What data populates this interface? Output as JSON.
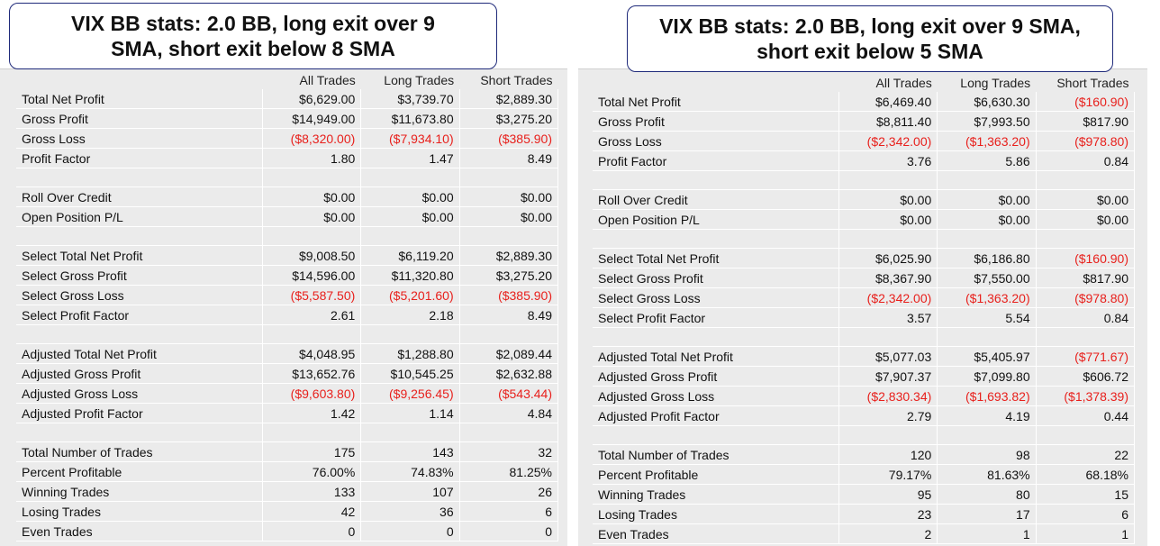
{
  "panels": [
    {
      "title_line1": "VIX BB stats: 2.0 BB, long exit over 9",
      "title_line2": "SMA, short exit below 8 SMA",
      "headers": [
        "All Trades",
        "Long Trades",
        "Short Trades"
      ],
      "rows": [
        {
          "label": "Total Net Profit",
          "values": [
            "$6,629.00",
            "$3,739.70",
            "$2,889.30"
          ],
          "neg": [
            false,
            false,
            false
          ]
        },
        {
          "label": "Gross Profit",
          "values": [
            "$14,949.00",
            "$11,673.80",
            "$3,275.20"
          ],
          "neg": [
            false,
            false,
            false
          ]
        },
        {
          "label": "Gross Loss",
          "values": [
            "($8,320.00)",
            "($7,934.10)",
            "($385.90)"
          ],
          "neg": [
            true,
            true,
            true
          ]
        },
        {
          "label": "Profit Factor",
          "values": [
            "1.80",
            "1.47",
            "8.49"
          ],
          "neg": [
            false,
            false,
            false
          ]
        },
        {
          "blank": true
        },
        {
          "label": "Roll Over Credit",
          "values": [
            "$0.00",
            "$0.00",
            "$0.00"
          ],
          "neg": [
            false,
            false,
            false
          ]
        },
        {
          "label": "Open Position P/L",
          "values": [
            "$0.00",
            "$0.00",
            "$0.00"
          ],
          "neg": [
            false,
            false,
            false
          ]
        },
        {
          "blank": true
        },
        {
          "label": "Select Total Net Profit",
          "values": [
            "$9,008.50",
            "$6,119.20",
            "$2,889.30"
          ],
          "neg": [
            false,
            false,
            false
          ]
        },
        {
          "label": "Select Gross Profit",
          "values": [
            "$14,596.00",
            "$11,320.80",
            "$3,275.20"
          ],
          "neg": [
            false,
            false,
            false
          ]
        },
        {
          "label": "Select Gross Loss",
          "values": [
            "($5,587.50)",
            "($5,201.60)",
            "($385.90)"
          ],
          "neg": [
            true,
            true,
            true
          ]
        },
        {
          "label": "Select Profit Factor",
          "values": [
            "2.61",
            "2.18",
            "8.49"
          ],
          "neg": [
            false,
            false,
            false
          ]
        },
        {
          "blank": true
        },
        {
          "label": "Adjusted Total Net Profit",
          "values": [
            "$4,048.95",
            "$1,288.80",
            "$2,089.44"
          ],
          "neg": [
            false,
            false,
            false
          ]
        },
        {
          "label": "Adjusted Gross Profit",
          "values": [
            "$13,652.76",
            "$10,545.25",
            "$2,632.88"
          ],
          "neg": [
            false,
            false,
            false
          ]
        },
        {
          "label": "Adjusted Gross Loss",
          "values": [
            "($9,603.80)",
            "($9,256.45)",
            "($543.44)"
          ],
          "neg": [
            true,
            true,
            true
          ]
        },
        {
          "label": "Adjusted Profit Factor",
          "values": [
            "1.42",
            "1.14",
            "4.84"
          ],
          "neg": [
            false,
            false,
            false
          ]
        },
        {
          "blank": true
        },
        {
          "label": "Total Number of Trades",
          "values": [
            "175",
            "143",
            "32"
          ],
          "neg": [
            false,
            false,
            false
          ]
        },
        {
          "label": "Percent Profitable",
          "values": [
            "76.00%",
            "74.83%",
            "81.25%"
          ],
          "neg": [
            false,
            false,
            false
          ]
        },
        {
          "label": "Winning Trades",
          "values": [
            "133",
            "107",
            "26"
          ],
          "neg": [
            false,
            false,
            false
          ]
        },
        {
          "label": "Losing Trades",
          "values": [
            "42",
            "36",
            "6"
          ],
          "neg": [
            false,
            false,
            false
          ]
        },
        {
          "label": "Even Trades",
          "values": [
            "0",
            "0",
            "0"
          ],
          "neg": [
            false,
            false,
            false
          ]
        }
      ]
    },
    {
      "title_line1": "VIX BB stats: 2.0 BB, long exit over 9 SMA,",
      "title_line2": "short exit below 5 SMA",
      "headers": [
        "All Trades",
        "Long Trades",
        "Short Trades"
      ],
      "rows": [
        {
          "label": "Total Net Profit",
          "values": [
            "$6,469.40",
            "$6,630.30",
            "($160.90)"
          ],
          "neg": [
            false,
            false,
            true
          ]
        },
        {
          "label": "Gross Profit",
          "values": [
            "$8,811.40",
            "$7,993.50",
            "$817.90"
          ],
          "neg": [
            false,
            false,
            false
          ]
        },
        {
          "label": "Gross Loss",
          "values": [
            "($2,342.00)",
            "($1,363.20)",
            "($978.80)"
          ],
          "neg": [
            true,
            true,
            true
          ]
        },
        {
          "label": "Profit Factor",
          "values": [
            "3.76",
            "5.86",
            "0.84"
          ],
          "neg": [
            false,
            false,
            false
          ]
        },
        {
          "blank": true
        },
        {
          "label": "Roll Over Credit",
          "values": [
            "$0.00",
            "$0.00",
            "$0.00"
          ],
          "neg": [
            false,
            false,
            false
          ]
        },
        {
          "label": "Open Position P/L",
          "values": [
            "$0.00",
            "$0.00",
            "$0.00"
          ],
          "neg": [
            false,
            false,
            false
          ]
        },
        {
          "blank": true
        },
        {
          "label": "Select Total Net Profit",
          "values": [
            "$6,025.90",
            "$6,186.80",
            "($160.90)"
          ],
          "neg": [
            false,
            false,
            true
          ]
        },
        {
          "label": "Select Gross Profit",
          "values": [
            "$8,367.90",
            "$7,550.00",
            "$817.90"
          ],
          "neg": [
            false,
            false,
            false
          ]
        },
        {
          "label": "Select Gross Loss",
          "values": [
            "($2,342.00)",
            "($1,363.20)",
            "($978.80)"
          ],
          "neg": [
            true,
            true,
            true
          ]
        },
        {
          "label": "Select Profit Factor",
          "values": [
            "3.57",
            "5.54",
            "0.84"
          ],
          "neg": [
            false,
            false,
            false
          ]
        },
        {
          "blank": true
        },
        {
          "label": "Adjusted Total Net Profit",
          "values": [
            "$5,077.03",
            "$5,405.97",
            "($771.67)"
          ],
          "neg": [
            false,
            false,
            true
          ]
        },
        {
          "label": "Adjusted Gross Profit",
          "values": [
            "$7,907.37",
            "$7,099.80",
            "$606.72"
          ],
          "neg": [
            false,
            false,
            false
          ]
        },
        {
          "label": "Adjusted Gross Loss",
          "values": [
            "($2,830.34)",
            "($1,693.82)",
            "($1,378.39)"
          ],
          "neg": [
            true,
            true,
            true
          ]
        },
        {
          "label": "Adjusted Profit Factor",
          "values": [
            "2.79",
            "4.19",
            "0.44"
          ],
          "neg": [
            false,
            false,
            false
          ]
        },
        {
          "blank": true
        },
        {
          "label": "Total Number of Trades",
          "values": [
            "120",
            "98",
            "22"
          ],
          "neg": [
            false,
            false,
            false
          ]
        },
        {
          "label": "Percent Profitable",
          "values": [
            "79.17%",
            "81.63%",
            "68.18%"
          ],
          "neg": [
            false,
            false,
            false
          ]
        },
        {
          "label": "Winning Trades",
          "values": [
            "95",
            "80",
            "15"
          ],
          "neg": [
            false,
            false,
            false
          ]
        },
        {
          "label": "Losing Trades",
          "values": [
            "23",
            "17",
            "6"
          ],
          "neg": [
            false,
            false,
            false
          ]
        },
        {
          "label": "Even Trades",
          "values": [
            "2",
            "1",
            "1"
          ],
          "neg": [
            false,
            false,
            false
          ]
        }
      ]
    }
  ],
  "colors": {
    "negative": "#e8201c",
    "title_border": "#1f2a7a",
    "table_bg": "#ebebeb"
  }
}
